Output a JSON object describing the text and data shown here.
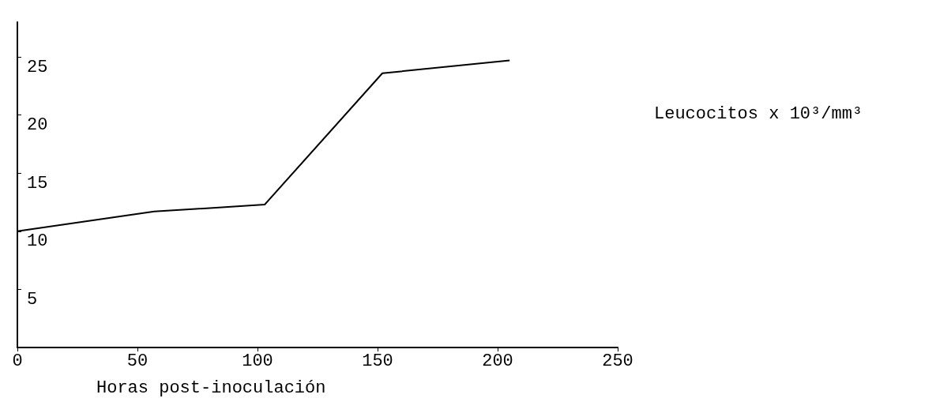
{
  "chart_data": {
    "type": "line",
    "xlabel": "Horas post-inoculación",
    "ylabel": "Leucocitos x 10³/mm³",
    "x": [
      0,
      57,
      103,
      152,
      205
    ],
    "values": [
      10,
      11.7,
      12.3,
      23.6,
      24.7
    ],
    "color": "#000000",
    "xlim": [
      0,
      250
    ],
    "xticks": [
      0,
      50,
      100,
      150,
      200,
      250
    ],
    "ylim": [
      0,
      28
    ],
    "yticks": [
      5,
      10,
      15,
      20,
      25
    ],
    "grid": false,
    "marker": "none",
    "line_style": "solid"
  }
}
